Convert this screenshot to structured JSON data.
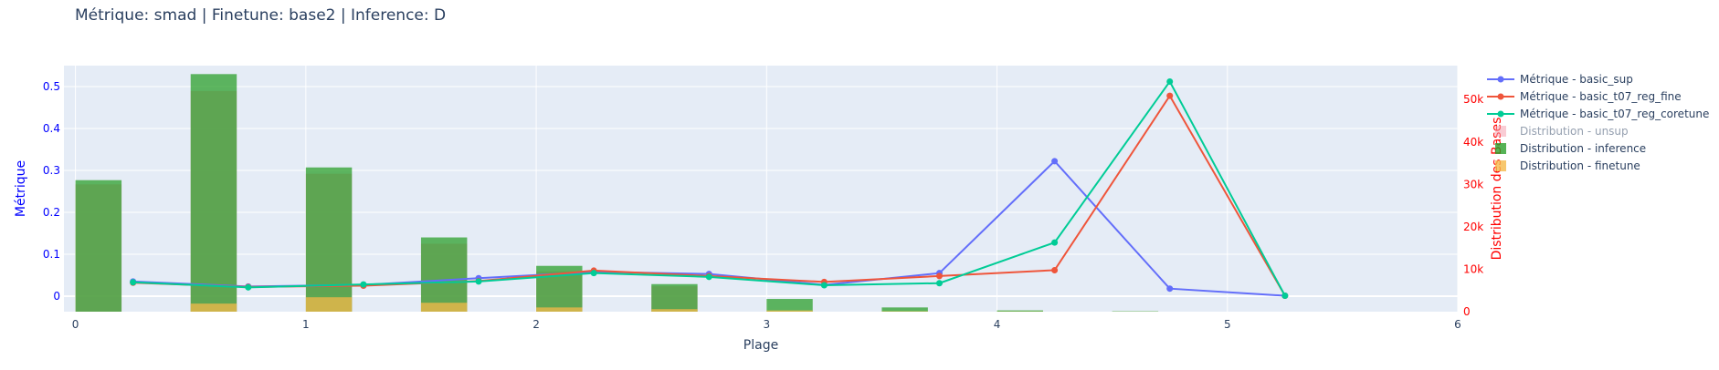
{
  "chart_data": {
    "type": "bar+line",
    "title": "Métrique: smad | Finetune: base2 | Inference: D",
    "xlabel": "Plage",
    "ylabel_left": "Métrique",
    "ylabel_right": "Distribution des Bases",
    "xlim": [
      -0.05,
      6.0
    ],
    "ylim_left": [
      -0.037,
      0.55
    ],
    "ylim_right": [
      0,
      58000
    ],
    "x_ticks": [
      "0",
      "1",
      "2",
      "3",
      "4",
      "5",
      "6"
    ],
    "y_left_ticks": [
      "0",
      "0.1",
      "0.2",
      "0.3",
      "0.4",
      "0.5"
    ],
    "y_right_ticks": [
      "0",
      "10k",
      "20k",
      "30k",
      "40k",
      "50k"
    ],
    "grid": true,
    "legend_position": "right",
    "colors": {
      "basic_sup": "#636efa",
      "basic_t07_reg_fine": "#ef553b",
      "basic_t07_reg_coretune": "#00cc96",
      "unsup": "#f4a3b0",
      "inference": "#2ca02c",
      "finetune": "#f5b94a",
      "left_axis": "#0000ff",
      "right_axis": "#ff0000",
      "plot_bg": "#e5ecf6"
    },
    "lines": [
      {
        "name": "Métrique - basic_sup",
        "color_key": "basic_sup",
        "x": [
          0.25,
          0.75,
          1.25,
          1.75,
          2.25,
          2.75,
          3.25,
          3.75,
          4.25,
          4.75,
          5.25
        ],
        "y": [
          0.035,
          0.023,
          0.027,
          0.043,
          0.058,
          0.053,
          0.027,
          0.055,
          0.322,
          0.018,
          0.001
        ]
      },
      {
        "name": "Métrique - basic_t07_reg_fine",
        "color_key": "basic_t07_reg_fine",
        "x": [
          0.25,
          0.75,
          1.25,
          1.75,
          2.25,
          2.75,
          3.25,
          3.75,
          4.25,
          4.75,
          5.25
        ],
        "y": [
          0.032,
          0.022,
          0.025,
          0.036,
          0.061,
          0.048,
          0.034,
          0.048,
          0.062,
          0.478,
          0.001
        ]
      },
      {
        "name": "Métrique - basic_t07_reg_coretune",
        "color_key": "basic_t07_reg_coretune",
        "x": [
          0.25,
          0.75,
          1.25,
          1.75,
          2.25,
          2.75,
          3.25,
          3.75,
          4.25,
          4.75,
          5.25
        ],
        "y": [
          0.033,
          0.021,
          0.028,
          0.035,
          0.055,
          0.046,
          0.026,
          0.031,
          0.128,
          0.512,
          0.001
        ]
      }
    ],
    "bars": [
      {
        "name": "Distribution - unsup",
        "color_key": "unsup",
        "offset": 0,
        "legend_dim": true,
        "x": [
          0.25,
          0.75,
          1.25,
          1.75,
          2.25,
          2.75,
          3.25,
          3.75,
          4.25,
          4.75,
          5.25
        ],
        "values": [
          30000,
          52000,
          32500,
          16000,
          9500,
          6000,
          0,
          0,
          0,
          0,
          0
        ]
      },
      {
        "name": "Distribution - inference",
        "color_key": "inference",
        "offset": 0,
        "x": [
          0.25,
          0.75,
          1.25,
          1.75,
          2.25,
          2.75,
          3.25,
          3.75,
          4.25,
          4.75,
          5.25
        ],
        "values": [
          31000,
          56000,
          34000,
          17500,
          10800,
          6500,
          3000,
          1000,
          300,
          100,
          0
        ]
      },
      {
        "name": "Distribution - finetune",
        "color_key": "finetune",
        "offset": 0.5,
        "x": [
          0.25,
          0.75,
          1.25,
          1.75,
          2.25,
          2.75,
          3.25,
          3.75,
          4.25,
          4.75,
          5.25
        ],
        "values": [
          1900,
          3400,
          2100,
          1000,
          600,
          300,
          100,
          50,
          20,
          0,
          0
        ]
      }
    ]
  }
}
